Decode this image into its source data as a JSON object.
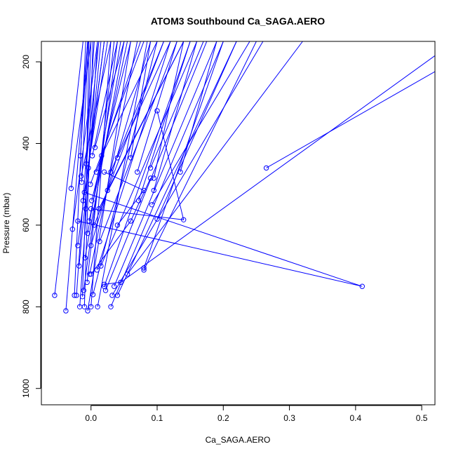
{
  "chart_data": {
    "type": "line",
    "title": "ATOM3 Southbound Ca_SAGA.AERO",
    "xlabel": "Ca_SAGA.AERO",
    "ylabel": "Pressure (mbar)",
    "xlim": [
      -0.075,
      0.52
    ],
    "ylim": [
      1040,
      150
    ],
    "y_inverted": true,
    "x_ticks": [
      0.0,
      0.1,
      0.2,
      0.3,
      0.4,
      0.5
    ],
    "x_tick_labels": [
      "0.0",
      "0.1",
      "0.2",
      "0.3",
      "0.4",
      "0.5"
    ],
    "y_ticks": [
      200,
      400,
      600,
      800,
      1000
    ],
    "y_tick_labels": [
      "200",
      "400",
      "600",
      "800",
      "1000"
    ],
    "grid": false,
    "legend": "none",
    "series_color": "#0000ff",
    "marker": "open-circle",
    "series": [
      {
        "values": [
          [
            -0.055,
            772
          ],
          [
            -0.012,
            150
          ]
        ]
      },
      {
        "values": [
          [
            -0.038,
            810
          ],
          [
            -0.005,
            150
          ]
        ]
      },
      {
        "values": [
          [
            -0.03,
            510
          ],
          [
            0.0,
            150
          ]
        ]
      },
      {
        "values": [
          [
            -0.028,
            610
          ],
          [
            0.01,
            150
          ]
        ]
      },
      {
        "values": [
          [
            -0.025,
            772
          ],
          [
            -0.008,
            150
          ]
        ]
      },
      {
        "values": [
          [
            -0.022,
            772
          ],
          [
            0.005,
            150
          ]
        ]
      },
      {
        "values": [
          [
            -0.02,
            650
          ],
          [
            0.02,
            150
          ]
        ]
      },
      {
        "values": [
          [
            -0.018,
            700
          ],
          [
            0.015,
            150
          ]
        ]
      },
      {
        "values": [
          [
            -0.017,
            800
          ],
          [
            0.01,
            150
          ]
        ]
      },
      {
        "values": [
          [
            -0.016,
            430
          ],
          [
            -0.005,
            150
          ]
        ]
      },
      {
        "values": [
          [
            -0.015,
            480
          ],
          [
            0.03,
            150
          ]
        ]
      },
      {
        "values": [
          [
            -0.014,
            495
          ],
          [
            -0.004,
            150
          ]
        ]
      },
      {
        "values": [
          [
            -0.013,
            775
          ],
          [
            0.0,
            150
          ]
        ]
      },
      {
        "values": [
          [
            -0.012,
            540
          ],
          [
            0.025,
            150
          ]
        ]
      },
      {
        "values": [
          [
            -0.011,
            760
          ],
          [
            0.04,
            150
          ]
        ]
      },
      {
        "values": [
          [
            -0.01,
            800
          ],
          [
            0.003,
            150
          ]
        ]
      },
      {
        "values": [
          [
            -0.009,
            680
          ],
          [
            0.05,
            150
          ]
        ]
      },
      {
        "values": [
          [
            -0.008,
            560
          ],
          [
            -0.003,
            150
          ]
        ]
      },
      {
        "values": [
          [
            -0.007,
            450
          ],
          [
            0.012,
            150
          ]
        ]
      },
      {
        "values": [
          [
            -0.006,
            740
          ],
          [
            0.035,
            150
          ]
        ]
      },
      {
        "values": [
          [
            -0.005,
            810
          ],
          [
            0.06,
            150
          ]
        ]
      },
      {
        "values": [
          [
            -0.005,
            620
          ],
          [
            0.045,
            150
          ]
        ]
      },
      {
        "values": [
          [
            -0.004,
            460
          ],
          [
            0.02,
            150
          ]
        ]
      },
      {
        "values": [
          [
            -0.003,
            590
          ],
          [
            0.055,
            150
          ]
        ]
      },
      {
        "values": [
          [
            -0.002,
            720
          ],
          [
            0.07,
            150
          ]
        ]
      },
      {
        "values": [
          [
            -0.001,
            500
          ],
          [
            0.08,
            150
          ]
        ]
      },
      {
        "values": [
          [
            0.0,
            800
          ],
          [
            0.03,
            150
          ]
        ]
      },
      {
        "values": [
          [
            0.0,
            650
          ],
          [
            0.09,
            150
          ]
        ]
      },
      {
        "values": [
          [
            0.001,
            540
          ],
          [
            0.06,
            150
          ]
        ]
      },
      {
        "values": [
          [
            0.002,
            430
          ],
          [
            0.04,
            150
          ]
        ]
      },
      {
        "values": [
          [
            0.003,
            770
          ],
          [
            0.1,
            150
          ]
        ]
      },
      {
        "values": [
          [
            0.005,
            600
          ],
          [
            0.11,
            150
          ]
        ]
      },
      {
        "values": [
          [
            0.006,
            410
          ],
          [
            0.05,
            150
          ]
        ]
      },
      {
        "values": [
          [
            0.008,
            470
          ],
          [
            0.075,
            150
          ]
        ]
      },
      {
        "values": [
          [
            0.009,
            710
          ],
          [
            0.12,
            150
          ]
        ]
      },
      {
        "values": [
          [
            0.01,
            800
          ],
          [
            0.085,
            150
          ]
        ]
      },
      {
        "values": [
          [
            0.012,
            560
          ],
          [
            0.14,
            150
          ]
        ]
      },
      {
        "values": [
          [
            0.013,
            640
          ],
          [
            0.13,
            150
          ]
        ]
      },
      {
        "values": [
          [
            0.015,
            700
          ],
          [
            0.16,
            150
          ]
        ]
      },
      {
        "values": [
          [
            0.016,
            430
          ],
          [
            0.1,
            150
          ]
        ]
      },
      {
        "values": [
          [
            0.02,
            750
          ],
          [
            0.15,
            150
          ]
        ]
      },
      {
        "values": [
          [
            0.022,
            760
          ],
          [
            0.175,
            150
          ]
        ]
      },
      {
        "values": [
          [
            0.025,
            515
          ],
          [
            0.14,
            150
          ]
        ]
      },
      {
        "values": [
          [
            0.03,
            470
          ],
          [
            0.11,
            150
          ]
        ]
      },
      {
        "values": [
          [
            0.03,
            800
          ],
          [
            0.2,
            150
          ]
        ]
      },
      {
        "values": [
          [
            0.032,
            772
          ],
          [
            0.26,
            150
          ]
        ]
      },
      {
        "values": [
          [
            0.035,
            750
          ],
          [
            0.19,
            150
          ]
        ]
      },
      {
        "values": [
          [
            0.04,
            435
          ],
          [
            0.12,
            150
          ]
        ]
      },
      {
        "values": [
          [
            0.04,
            772
          ],
          [
            0.22,
            150
          ]
        ]
      },
      {
        "values": [
          [
            0.055,
            720
          ],
          [
            0.32,
            150
          ]
        ]
      },
      {
        "values": [
          [
            0.06,
            435
          ],
          [
            0.09,
            150
          ]
        ]
      },
      {
        "values": [
          [
            0.07,
            470
          ],
          [
            0.13,
            150
          ]
        ]
      },
      {
        "values": [
          [
            0.072,
            540
          ],
          [
            0.15,
            150
          ]
        ]
      },
      {
        "values": [
          [
            0.08,
            705
          ],
          [
            0.2,
            150
          ]
        ]
      },
      {
        "values": [
          [
            0.08,
            710
          ],
          [
            0.25,
            150
          ]
        ]
      },
      {
        "values": [
          [
            0.09,
            460
          ],
          [
            0.17,
            150
          ]
        ]
      },
      {
        "values": [
          [
            0.092,
            550
          ],
          [
            0.24,
            150
          ]
        ]
      },
      {
        "values": [
          [
            0.095,
            485
          ],
          [
            0.14,
            150
          ]
        ]
      },
      {
        "values": [
          [
            0.095,
            515
          ],
          [
            0.16,
            150
          ]
        ]
      },
      {
        "values": [
          [
            0.1,
            585
          ],
          [
            0.22,
            150
          ]
        ]
      },
      {
        "values": [
          [
            0.135,
            470
          ],
          [
            0.19,
            150
          ]
        ]
      },
      {
        "values": [
          [
            0.265,
            460
          ],
          [
            0.6,
            150
          ]
        ]
      },
      {
        "values": [
          [
            0.02,
            745
          ],
          [
            0.045,
            740
          ],
          [
            0.55,
            150
          ]
        ]
      },
      {
        "values": [
          [
            0.0,
            560
          ],
          [
            0.14,
            587
          ],
          [
            0.1,
            320
          ]
        ]
      },
      {
        "values": [
          [
            -0.01,
            520
          ],
          [
            0.41,
            750
          ],
          [
            -0.02,
            590
          ]
        ]
      },
      {
        "values": [
          [
            0.02,
            470
          ],
          [
            0.08,
            515
          ],
          [
            0.04,
            600
          ]
        ]
      },
      {
        "values": [
          [
            0.0,
            720
          ],
          [
            0.06,
            590
          ],
          [
            0.09,
            485
          ]
        ]
      }
    ]
  }
}
